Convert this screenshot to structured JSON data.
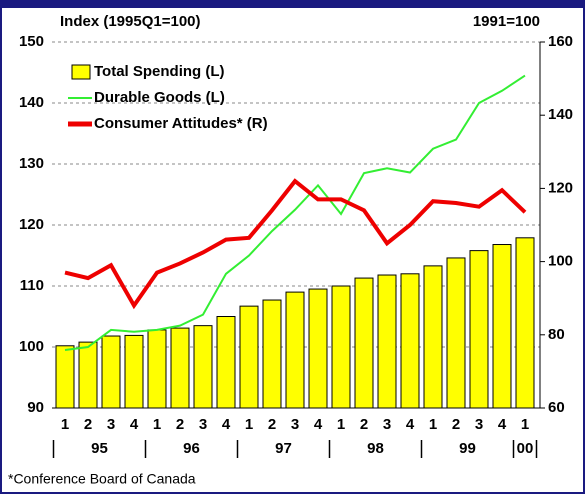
{
  "chart_data": {
    "type": "bar-line",
    "annotation_left": "Index (1995Q1=100)",
    "annotation_right": "1991=100",
    "footnote": "*Conference Board of Canada",
    "categories": [
      "1",
      "2",
      "3",
      "4",
      "1",
      "2",
      "3",
      "4",
      "1",
      "2",
      "3",
      "4",
      "1",
      "2",
      "3",
      "4",
      "1",
      "2",
      "3",
      "4",
      "1"
    ],
    "year_labels": [
      "95",
      "96",
      "97",
      "98",
      "99",
      "00"
    ],
    "series": [
      {
        "name": "Total Spending (L)",
        "type": "bar",
        "color": "#ffff00",
        "axis": "y",
        "values": [
          100.2,
          100.8,
          101.8,
          101.9,
          102.8,
          103.1,
          103.5,
          105,
          106.7,
          107.7,
          109,
          109.5,
          110,
          111.3,
          111.8,
          112,
          113.3,
          114.6,
          115.8,
          116.8,
          117.9
        ]
      },
      {
        "name": "Durable Goods (L)",
        "type": "line",
        "color": "#33ee33",
        "axis": "y",
        "values": [
          99.5,
          100,
          102.8,
          102.5,
          102.8,
          103.5,
          105.3,
          112,
          115,
          119,
          122.5,
          126.5,
          121.8,
          128.5,
          129.3,
          128.6,
          132.5,
          134,
          140,
          142,
          144.5
        ]
      },
      {
        "name": "Consumer Attitudes* (R)",
        "type": "line",
        "color": "#ee0000",
        "axis": "y2",
        "values": [
          97,
          95.5,
          99,
          88,
          97,
          99.5,
          102.5,
          106,
          106.5,
          114,
          122,
          117,
          117,
          114,
          105,
          110,
          116.5,
          116,
          115,
          119.5,
          113.5
        ]
      }
    ],
    "ylim": [
      90,
      150
    ],
    "yticks": [
      90,
      100,
      110,
      120,
      130,
      140,
      150
    ],
    "y2lim": [
      60,
      160
    ],
    "y2ticks": [
      60,
      80,
      100,
      120,
      140,
      160
    ],
    "grid": true
  }
}
